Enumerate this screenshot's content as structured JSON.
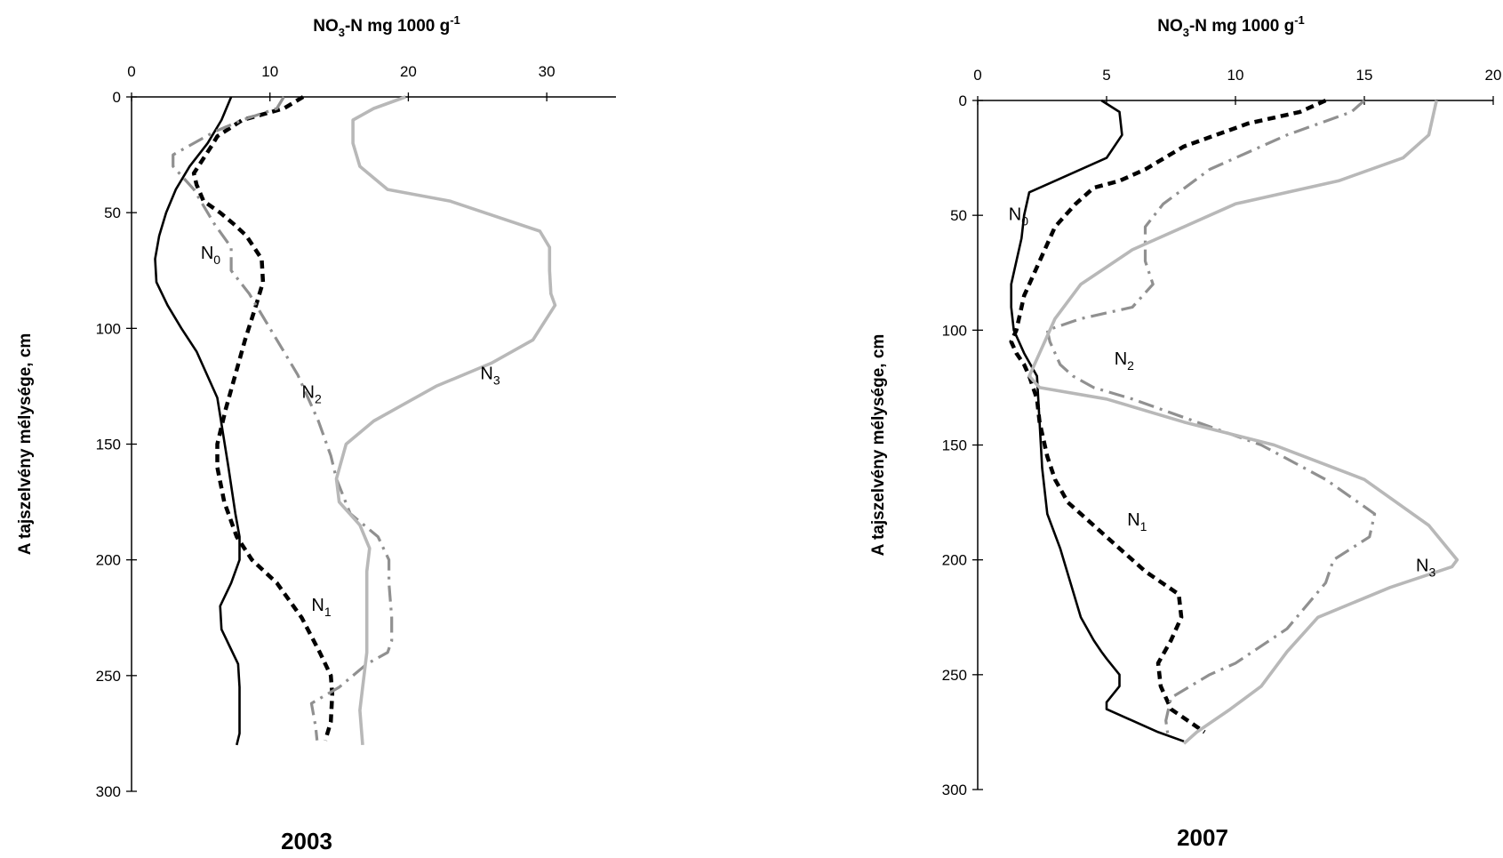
{
  "chart_data": [
    {
      "type": "line",
      "orientation": "depth-profile",
      "year_label": "2003",
      "xlabel": {
        "main": "NO",
        "sub": "3",
        "mid": "-N mg 1000 g",
        "sup": "-1"
      },
      "ylabel": "A tajszelvény mélysége, cm",
      "xlim": [
        0,
        35
      ],
      "ylim": [
        0,
        300
      ],
      "x_ticks": [
        0,
        10,
        20,
        30
      ],
      "y_ticks": [
        0,
        50,
        100,
        150,
        200,
        250,
        300
      ],
      "y_inverted": true,
      "grid": false,
      "legend": "inline labels",
      "series": [
        {
          "name": {
            "base": "N",
            "sub": "0"
          },
          "color": "#000000",
          "style": "solid",
          "x": [
            7.2,
            6.5,
            5.5,
            4.2,
            3.2,
            2.5,
            2.0,
            1.7,
            1.8,
            2.6,
            3.6,
            4.7,
            6.2,
            7.0,
            7.5,
            7.8,
            7.8,
            7.2,
            6.4,
            6.5,
            7.7,
            7.8,
            7.8,
            7.8,
            7.6
          ],
          "y": [
            0,
            10,
            20,
            30,
            40,
            50,
            60,
            70,
            80,
            90,
            100,
            110,
            130,
            160,
            180,
            190,
            200,
            210,
            220,
            230,
            245,
            255,
            265,
            275,
            280
          ]
        },
        {
          "name": {
            "base": "N",
            "sub": "1"
          },
          "color": "#000000",
          "style": "dash",
          "x": [
            12.4,
            11.0,
            8.0,
            6.2,
            5.8,
            4.5,
            4.7,
            5.2,
            6.4,
            7.4,
            8.3,
            9.4,
            9.5,
            9.0,
            8.2,
            6.8,
            6.2,
            6.2,
            6.7,
            7.6,
            8.7,
            10.5,
            12.3,
            13.6,
            14.4,
            14.5,
            14.4,
            14.0
          ],
          "y": [
            0,
            5,
            10,
            17,
            21,
            33,
            38,
            45,
            50,
            55,
            60,
            70,
            80,
            90,
            105,
            135,
            150,
            160,
            175,
            190,
            200,
            210,
            225,
            240,
            250,
            258,
            270,
            278
          ]
        },
        {
          "name": {
            "base": "N",
            "sub": "2"
          },
          "color": "#909090",
          "style": "dashdot",
          "x": [
            11.0,
            10.5,
            8.0,
            6.0,
            3.0,
            3.0,
            4.5,
            5.5,
            6.0,
            7.2,
            7.2,
            8.5,
            10.0,
            12.0,
            13.5,
            14.4,
            14.8,
            15.8,
            17.8,
            18.6,
            18.6,
            18.8,
            18.8,
            18.5,
            17.0,
            15.0,
            13.0,
            13.3,
            13.4
          ],
          "y": [
            0,
            5,
            10,
            15,
            25,
            30,
            40,
            50,
            55,
            65,
            75,
            85,
            100,
            120,
            140,
            155,
            165,
            180,
            190,
            200,
            210,
            225,
            235,
            240,
            245,
            255,
            262,
            272,
            278
          ]
        },
        {
          "name": {
            "base": "N",
            "sub": "3"
          },
          "color": "#b8b8b8",
          "style": "solid-thick",
          "x": [
            19.8,
            17.5,
            16.0,
            16.0,
            16.5,
            18.5,
            23.0,
            29.5,
            30.2,
            30.2,
            30.3,
            30.6,
            29.0,
            26.0,
            22.0,
            19.0,
            17.5,
            15.5,
            14.8,
            15.0,
            16.5,
            17.2,
            17.0,
            17.0,
            17.0,
            16.7,
            16.5,
            16.7
          ],
          "y": [
            0,
            5,
            10,
            20,
            30,
            40,
            45,
            58,
            65,
            75,
            85,
            90,
            105,
            115,
            125,
            135,
            140,
            150,
            165,
            175,
            185,
            195,
            205,
            220,
            240,
            255,
            265,
            280
          ]
        }
      ]
    },
    {
      "type": "line",
      "orientation": "depth-profile",
      "year_label": "2007",
      "xlabel": {
        "main": "NO",
        "sub": "3",
        "mid": "-N mg 1000 g",
        "sup": "-1"
      },
      "ylabel": "A tajszelvény mélysége, cm",
      "xlim": [
        0,
        20
      ],
      "ylim": [
        0,
        300
      ],
      "x_ticks": [
        0,
        5,
        10,
        15,
        20
      ],
      "y_ticks": [
        0,
        50,
        100,
        150,
        200,
        250,
        300
      ],
      "y_inverted": true,
      "grid": false,
      "legend": "inline labels",
      "series": [
        {
          "name": {
            "base": "N",
            "sub": "0"
          },
          "color": "#000000",
          "style": "solid",
          "x": [
            4.8,
            5.5,
            5.6,
            5.0,
            3.0,
            2.0,
            1.8,
            1.7,
            1.5,
            1.3,
            1.3,
            1.4,
            1.8,
            2.3,
            2.4,
            2.5,
            2.7,
            3.2,
            3.6,
            4.0,
            4.5,
            4.8,
            5.0,
            5.5,
            5.5,
            5.0,
            5.0,
            7.0,
            8.0
          ],
          "y": [
            0,
            5,
            15,
            25,
            35,
            40,
            50,
            60,
            70,
            80,
            90,
            100,
            110,
            120,
            140,
            160,
            180,
            195,
            210,
            225,
            235,
            240,
            243,
            250,
            255,
            262,
            265,
            275,
            279
          ]
        },
        {
          "name": {
            "base": "N",
            "sub": "1"
          },
          "color": "#000000",
          "style": "dash",
          "x": [
            13.5,
            12.5,
            10.5,
            8.0,
            6.5,
            5.5,
            4.5,
            3.8,
            3.0,
            2.4,
            1.8,
            1.5,
            1.3,
            1.5,
            1.8,
            2.0,
            2.3,
            2.4,
            2.7,
            3.0,
            3.5,
            4.5,
            5.5,
            6.5,
            7.8,
            7.9,
            7.5,
            7.0,
            7.1,
            7.5,
            8.8
          ],
          "y": [
            0,
            5,
            10,
            20,
            30,
            35,
            38,
            45,
            55,
            70,
            85,
            100,
            105,
            110,
            115,
            120,
            130,
            140,
            155,
            165,
            175,
            185,
            195,
            205,
            215,
            225,
            235,
            245,
            255,
            265,
            275
          ]
        },
        {
          "name": {
            "base": "N",
            "sub": "2"
          },
          "color": "#909090",
          "style": "dashdot",
          "x": [
            15.0,
            14.5,
            12.0,
            9.0,
            7.2,
            6.5,
            6.5,
            6.5,
            6.8,
            6.0,
            4.0,
            2.7,
            2.8,
            3.0,
            3.2,
            3.7,
            4.5,
            6.0,
            8.5,
            11.0,
            13.5,
            15.4,
            15.2,
            13.8,
            13.5,
            12.0,
            10.0,
            9.0,
            7.5,
            7.3,
            7.4
          ],
          "y": [
            0,
            5,
            15,
            30,
            45,
            55,
            65,
            70,
            80,
            90,
            95,
            100,
            105,
            110,
            115,
            120,
            125,
            130,
            140,
            150,
            165,
            180,
            190,
            200,
            210,
            230,
            245,
            250,
            260,
            270,
            278
          ]
        },
        {
          "name": {
            "base": "N",
            "sub": "3"
          },
          "color": "#b8b8b8",
          "style": "solid-thick",
          "x": [
            17.8,
            17.5,
            16.5,
            14.0,
            10.0,
            8.0,
            6.0,
            4.0,
            3.0,
            2.4,
            2.0,
            2.4,
            5.0,
            8.0,
            11.5,
            15.0,
            17.5,
            18.6,
            18.4,
            16.0,
            13.2,
            12.0,
            11.0,
            9.8,
            8.5,
            8.0
          ],
          "y": [
            0,
            15,
            25,
            35,
            45,
            55,
            65,
            80,
            95,
            110,
            120,
            125,
            130,
            140,
            150,
            165,
            185,
            200,
            203,
            212,
            225,
            240,
            255,
            265,
            275,
            280
          ]
        }
      ]
    }
  ]
}
